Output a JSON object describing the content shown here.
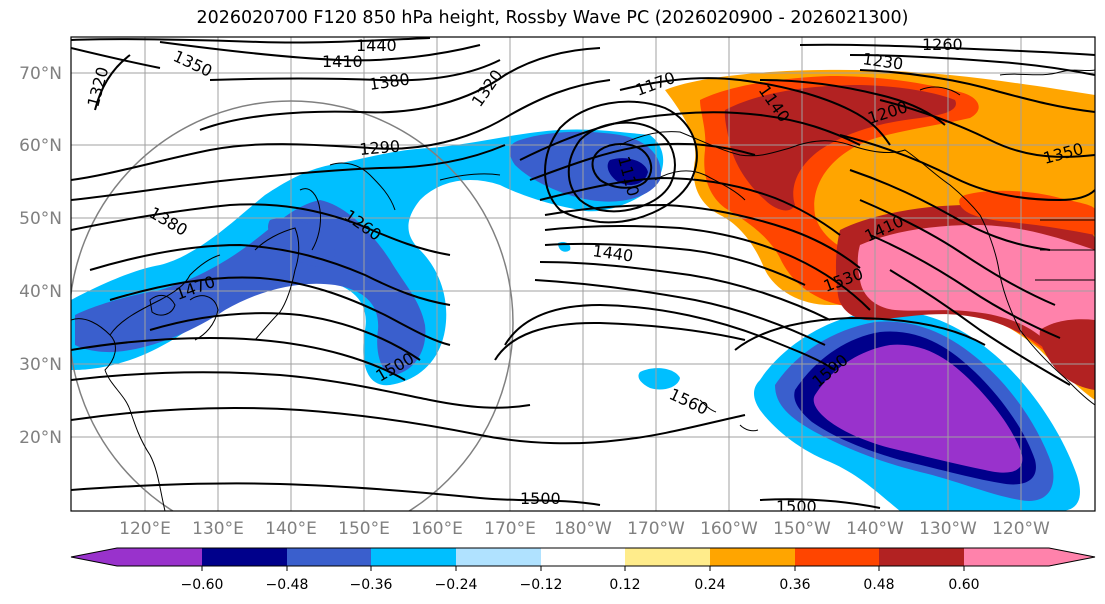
{
  "title": "2026020700 F120 850 hPa height, Rossby Wave PC (2026020900 - 2026021300)",
  "map": {
    "lat_labels": [
      "70°N",
      "60°N",
      "50°N",
      "40°N",
      "30°N",
      "20°N"
    ],
    "lon_labels": [
      "120°E",
      "130°E",
      "140°E",
      "150°E",
      "160°E",
      "170°E",
      "180°W",
      "170°W",
      "160°W",
      "150°W",
      "140°W",
      "130°W",
      "120°W"
    ],
    "contour_labels": [
      "1440",
      "1410",
      "1350",
      "1320",
      "1380",
      "1320",
      "1170",
      "1140",
      "1260",
      "1230",
      "1200",
      "1350",
      "1290",
      "1110",
      "1380",
      "1260",
      "1440",
      "1410",
      "1470",
      "1530",
      "1500",
      "1590",
      "1560",
      "1500",
      "1500"
    ],
    "colors": {
      "neg_060": "#9932cc",
      "neg_048": "#00008b",
      "neg_036": "#3a5fcd",
      "neg_024": "#00bfff",
      "neg_012": "#b0e2ff",
      "zero": "#ffffff",
      "pos_012": "#ffec8b",
      "pos_024": "#ffa500",
      "pos_036": "#ff4500",
      "pos_048": "#b22222",
      "pos_060": "#ff82ab"
    }
  },
  "colorbar": {
    "ticks": [
      "−0.60",
      "−0.48",
      "−0.36",
      "−0.24",
      "−0.12",
      "0.12",
      "0.24",
      "0.36",
      "0.48",
      "0.60"
    ],
    "colors": [
      "#9932cc",
      "#00008b",
      "#3a5fcd",
      "#00bfff",
      "#b0e2ff",
      "#ffffff",
      "#ffec8b",
      "#ffa500",
      "#ff4500",
      "#b22222",
      "#ff82ab"
    ]
  }
}
